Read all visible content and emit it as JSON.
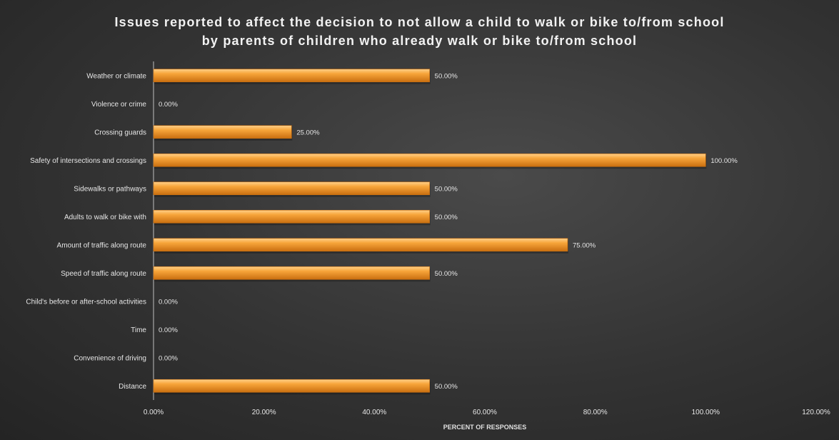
{
  "chart_data": {
    "type": "bar",
    "orientation": "horizontal",
    "title": [
      "Issues reported to affect the decision to not allow a child to walk or bike to/from school",
      "by parents of children who already walk or bike to/from school"
    ],
    "xlabel": "PERCENT OF RESPONSES",
    "ylabel": "",
    "xlim": [
      0,
      120
    ],
    "x_ticks": [
      0,
      20,
      40,
      60,
      80,
      100,
      120
    ],
    "x_tick_labels": [
      "0.00%",
      "20.00%",
      "40.00%",
      "60.00%",
      "80.00%",
      "100.00%",
      "120.00%"
    ],
    "grid": false,
    "categories": [
      "Weather or climate",
      "Violence or crime",
      "Crossing guards",
      "Safety of intersections and crossings",
      "Sidewalks or pathways",
      "Adults to walk or bike with",
      "Amount of traffic along route",
      "Speed of traffic along route",
      "Child's before or after-school activities",
      "Time",
      "Convenience of driving",
      "Distance"
    ],
    "values": [
      50,
      0,
      25,
      100,
      50,
      50,
      75,
      50,
      0,
      0,
      0,
      50
    ],
    "data_labels": [
      "50.00%",
      "0.00%",
      "25.00%",
      "100.00%",
      "50.00%",
      "50.00%",
      "75.00%",
      "50.00%",
      "0.00%",
      "0.00%",
      "0.00%",
      "50.00%"
    ],
    "colors": {
      "bar": "#f39c2c",
      "bar_light": "#ffd08a",
      "bar_dark": "#c96f10",
      "axis": "#bfbfbf",
      "text": "#e6e6e6"
    }
  }
}
